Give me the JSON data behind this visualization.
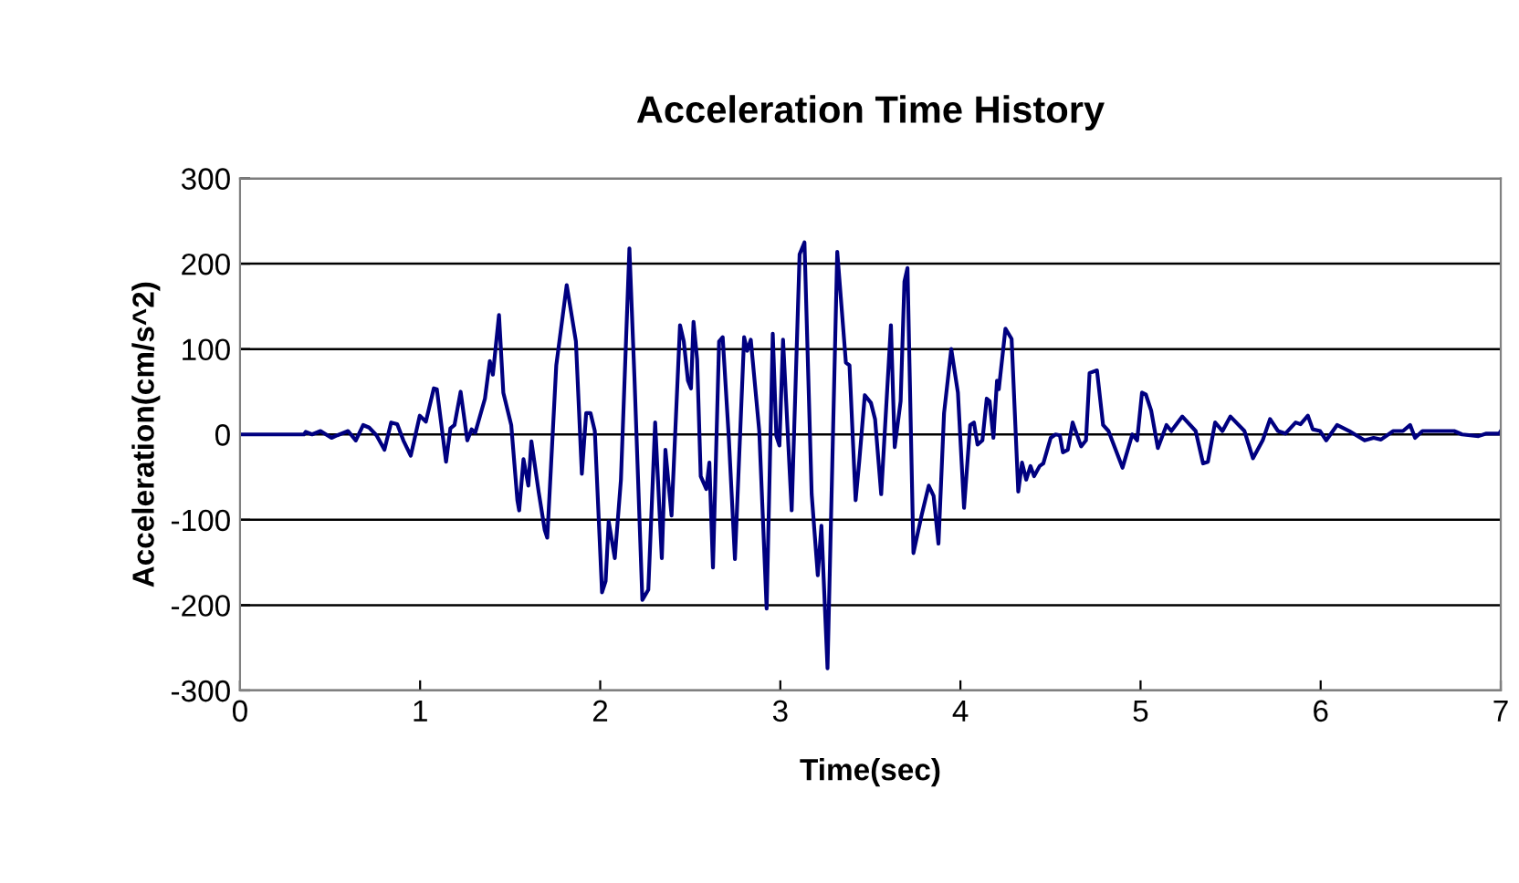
{
  "chart_data": {
    "type": "line",
    "title": "Acceleration Time History",
    "xlabel": "Time(sec)",
    "ylabel": "Acceleration(cm/s^2)",
    "xlim": [
      0,
      7
    ],
    "xticks": [
      0,
      1,
      2,
      3,
      4,
      5,
      6,
      7
    ],
    "ylim": [
      -300,
      300
    ],
    "yticks": [
      -300,
      -200,
      -100,
      0,
      100,
      200,
      300
    ],
    "grid": "y",
    "marker": "none",
    "line_style": "solid",
    "series": [
      {
        "color": "#000080",
        "x": [
          0,
          0.355,
          0.365,
          0.4,
          0.447,
          0.508,
          0.54,
          0.6,
          0.643,
          0.684,
          0.717,
          0.758,
          0.802,
          0.839,
          0.873,
          0.907,
          0.948,
          0.998,
          1.032,
          1.076,
          1.093,
          1.144,
          1.168,
          1.191,
          1.225,
          1.262,
          1.286,
          1.306,
          1.36,
          1.387,
          1.404,
          1.438,
          1.462,
          1.506,
          1.54,
          1.55,
          1.574,
          1.601,
          1.618,
          1.658,
          1.692,
          1.706,
          1.756,
          1.814,
          1.865,
          1.898,
          1.922,
          1.946,
          1.97,
          2.01,
          2.03,
          2.047,
          2.081,
          2.115,
          2.162,
          2.19,
          2.234,
          2.267,
          2.305,
          2.342,
          2.362,
          2.396,
          2.443,
          2.464,
          2.487,
          2.504,
          2.518,
          2.538,
          2.558,
          2.589,
          2.606,
          2.626,
          2.66,
          2.68,
          2.714,
          2.748,
          2.799,
          2.816,
          2.836,
          2.883,
          2.924,
          2.958,
          2.978,
          2.995,
          3.015,
          3.063,
          3.107,
          3.134,
          3.174,
          3.208,
          3.228,
          3.262,
          3.316,
          3.364,
          3.384,
          3.418,
          3.438,
          3.469,
          3.503,
          3.526,
          3.56,
          3.614,
          3.635,
          3.668,
          3.689,
          3.706,
          3.739,
          3.783,
          3.824,
          3.851,
          3.878,
          3.909,
          3.949,
          3.986,
          4.02,
          4.054,
          4.075,
          4.095,
          4.122,
          4.146,
          4.162,
          4.183,
          4.203,
          4.213,
          4.25,
          4.284,
          4.321,
          4.342,
          4.365,
          4.389,
          4.409,
          4.44,
          4.46,
          4.501,
          4.528,
          4.552,
          4.569,
          4.596,
          4.623,
          4.67,
          4.697,
          4.717,
          4.758,
          4.792,
          4.822,
          4.9,
          4.954,
          4.981,
          5.008,
          5.029,
          5.059,
          5.096,
          5.144,
          5.171,
          5.232,
          5.306,
          5.347,
          5.374,
          5.414,
          5.455,
          5.499,
          5.577,
          5.624,
          5.678,
          5.719,
          5.763,
          5.804,
          5.861,
          5.888,
          5.929,
          5.956,
          5.997,
          6.031,
          6.091,
          6.159,
          6.244,
          6.294,
          6.335,
          6.403,
          6.457,
          6.497,
          6.524,
          6.565,
          6.741,
          6.785,
          6.876,
          6.92,
          6.991,
          7.0
        ],
        "values": [
          0,
          0,
          3,
          0,
          4,
          -4,
          -1,
          4,
          -7,
          11,
          8,
          -1,
          -18,
          14,
          12,
          -7,
          -25,
          22,
          15,
          54,
          53,
          -32,
          7,
          11,
          50,
          -7,
          6,
          2,
          42,
          86,
          70,
          140,
          49,
          11,
          -77,
          -89,
          -29,
          -60,
          -8,
          -67,
          -112,
          -121,
          81,
          175,
          109,
          -46,
          25,
          25,
          4,
          -185,
          -172,
          -102,
          -145,
          -53,
          218,
          67,
          -194,
          -182,
          14,
          -145,
          -18,
          -95,
          128,
          109,
          63,
          54,
          132,
          88,
          -49,
          -64,
          -33,
          -156,
          109,
          114,
          -4,
          -146,
          114,
          98,
          111,
          4,
          -204,
          118,
          -2,
          -13,
          111,
          -89,
          211,
          225,
          -70,
          -165,
          -107,
          -274,
          214,
          84,
          81,
          -77,
          -32,
          46,
          37,
          18,
          -70,
          128,
          -15,
          39,
          179,
          195,
          -139,
          -96,
          -60,
          -72,
          -128,
          25,
          100,
          49,
          -86,
          11,
          14,
          -12,
          -7,
          42,
          39,
          -4,
          63,
          53,
          124,
          112,
          -67,
          -33,
          -53,
          -37,
          -49,
          -37,
          -34,
          -4,
          0,
          -1,
          -21,
          -18,
          14,
          -14,
          -7,
          72,
          75,
          11,
          4,
          -39,
          0,
          -7,
          49,
          47,
          28,
          -16,
          11,
          4,
          21,
          4,
          -34,
          -32,
          14,
          4,
          21,
          4,
          -28,
          -7,
          18,
          4,
          1,
          14,
          12,
          22,
          6,
          4,
          -7,
          11,
          4,
          -7,
          -4,
          -6,
          4,
          4,
          11,
          -4,
          4,
          4,
          0,
          -2,
          1,
          1,
          4
        ]
      }
    ]
  }
}
